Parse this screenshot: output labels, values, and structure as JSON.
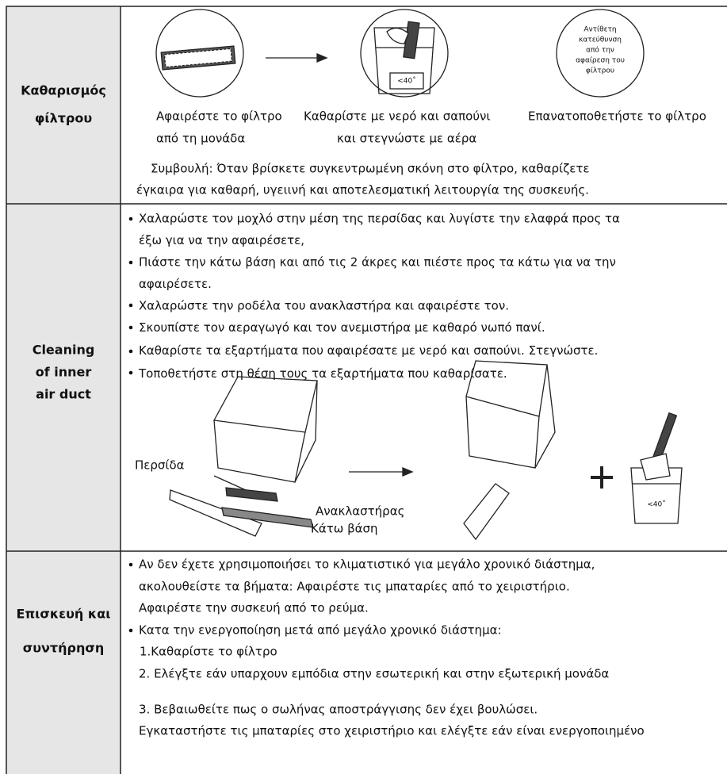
{
  "rows": [
    {
      "label": [
        "Καθαρισμός",
        "φίλτρου"
      ],
      "steps": [
        {
          "caption": [
            "Αφαιρέστε το φίλτρο",
            "από τη μονάδα"
          ]
        },
        {
          "caption": [
            "Καθαρίστε με νερό και σαπούνι",
            "και στεγνώστε με αέρα"
          ],
          "temperature": "<40˚"
        },
        {
          "caption": [
            "Επανατοποθετήστε το φίλτρο"
          ],
          "note": [
            "Αντίθετη",
            "κατεύθυνση",
            "από την",
            "αφαίρεση του",
            "φίλτρου"
          ]
        }
      ],
      "tip": [
        "Συμβουλή: Όταν βρίσκετε συγκεντρωμένη σκόνη στο φίλτρο, καθαρίζετε",
        "έγκαιρα για καθαρή, υγειινή και αποτελεσματική λειτουργία της συσκευής."
      ]
    },
    {
      "label": [
        "Cleaning",
        "of inner",
        "air duct"
      ],
      "bullets": [
        [
          "Χαλαρώστε τον μοχλό στην μέση της περσίδας και λυγίστε την ελαφρά προς τα",
          "έξω για να την αφαιρέσετε,"
        ],
        [
          "Πιάστε την κάτω βάση και από τις 2 άκρες και πιέστε προς τα κάτω για να την",
          "αφαιρέσετε."
        ],
        [
          "Χαλαρώστε την ροδέλα του ανακλαστήρα και αφαιρέστε τον."
        ],
        [
          "Σκουπίστε τον αεραγωγό και τον ανεμιστήρα με καθαρό νωπό πανί."
        ],
        [
          "Καθαρίστε τα εξαρτήματα που αφαιρέσατε με νερό και σαπούνι. Στεγνώστε."
        ],
        [
          "Τοποθετήστε στη θέση τους τα εξαρτήματα που καθαρίσατε."
        ]
      ],
      "figure": {
        "louver": "Περσίδα",
        "reflector": "Ανακλαστήρας",
        "base": "Κάτω βάση",
        "temperature": "<40˚"
      }
    },
    {
      "label": [
        "Επισκευή και",
        "συντήρηση"
      ],
      "bullets": [
        [
          "Αν δεν έχετε  χρησιμοποιήσει το κλιματιστικό για μεγάλο χρονικό διάστημα,",
          "ακολουθείστε τα βήματα:  Αφαιρέστε τις μπαταρίες από το χειριστήριο.",
          "Αφαιρέστε την συσκευή από το ρεύμα."
        ],
        [
          "Κατα την ενεργοποίηση μετά από μεγάλο χρονικό διάστημα:"
        ]
      ],
      "steps": [
        "1.Καθαρίστε το φίλτρο",
        "2. Ελέγξτε εάν υπαρχουν εμπόδια στην εσωτερική και στην εξωτερική μονάδα",
        "3. Βεβαιωθείτε πως ο σωλήνας αποστράγγισης δεν έχει βουλώσει.",
        "Εγκαταστήστε τις μπαταρίες στο χειριστήριο  και ελέγξτε εάν είναι ενεργοποιημένο"
      ]
    }
  ]
}
